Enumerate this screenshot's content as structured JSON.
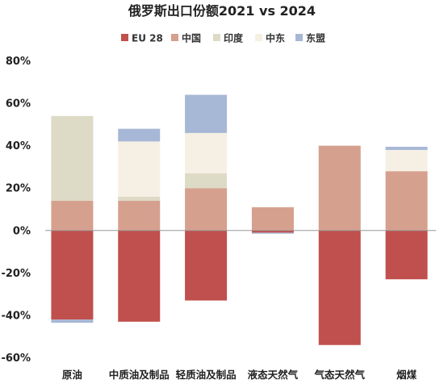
{
  "colors": {
    "EU 28": "#c0504d",
    "中国": "#d6a08e",
    "印度": "#dddac6",
    "中东": "#f6f0e4",
    "东盟": "#a7b7d6"
  },
  "chart_data": {
    "type": "bar",
    "stacked": true,
    "title": "俄罗斯出口份额2021 vs 2024",
    "xlabel": "",
    "ylabel": "",
    "ylim": [
      -60,
      80
    ],
    "yticks": [
      -60,
      -40,
      -20,
      0,
      20,
      40,
      60,
      80
    ],
    "ytick_labels": [
      "-60%",
      "-40%",
      "-20%",
      "0%",
      "20%",
      "40%",
      "60%",
      "80%"
    ],
    "legend_position": "top",
    "grid": false,
    "categories": [
      "原油",
      "中质油及制品",
      "轻质油及制品",
      "液态天然气",
      "气态天然气",
      "烟煤"
    ],
    "series": [
      {
        "name": "EU 28",
        "values": [
          -42,
          -43,
          -33,
          -1,
          -54,
          -23
        ]
      },
      {
        "name": "中国",
        "values": [
          14,
          14,
          20,
          11,
          40,
          28
        ]
      },
      {
        "name": "印度",
        "values": [
          40,
          2,
          7,
          0,
          0,
          0
        ]
      },
      {
        "name": "中东",
        "values": [
          0,
          26,
          19,
          0,
          0,
          10
        ]
      },
      {
        "name": "东盟",
        "values": [
          -1.5,
          6,
          18,
          -0.5,
          0,
          1.5
        ]
      }
    ]
  }
}
